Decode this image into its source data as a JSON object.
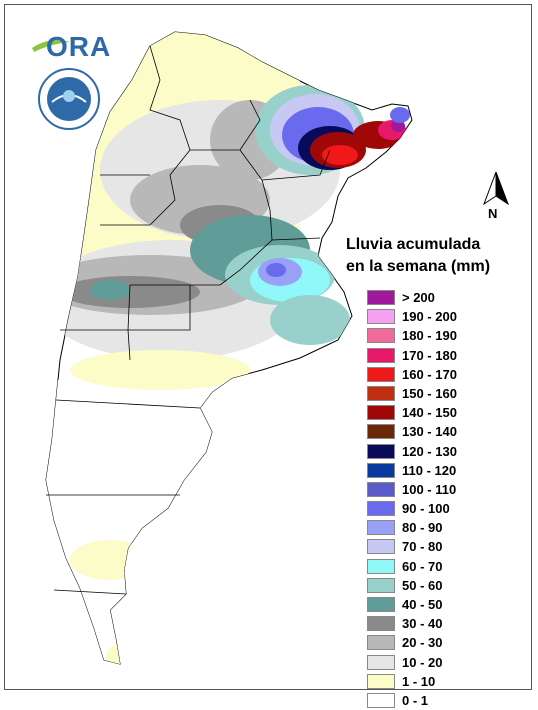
{
  "logo": {
    "text": "ORA",
    "accent_color": "#2e6aa8",
    "leaf_color": "#8cc63f"
  },
  "seal": {
    "icon": "national-weather-service-seal"
  },
  "north_arrow": {
    "letter": "N"
  },
  "legend": {
    "title_line1": "Lluvia acumulada",
    "title_line2": "en la semana (mm)",
    "items": [
      {
        "label": "> 200",
        "color": "#a0189c"
      },
      {
        "label": "190 - 200",
        "color": "#f5a0f0"
      },
      {
        "label": "180 - 190",
        "color": "#f06a9a"
      },
      {
        "label": "170 - 180",
        "color": "#e8186a"
      },
      {
        "label": "160 - 170",
        "color": "#f01818"
      },
      {
        "label": "150 - 160",
        "color": "#c03010"
      },
      {
        "label": "140 - 150",
        "color": "#a00808"
      },
      {
        "label": "130 - 140",
        "color": "#6a2808"
      },
      {
        "label": "120 - 130",
        "color": "#0a0a5a"
      },
      {
        "label": "110 - 120",
        "color": "#0a3aa0"
      },
      {
        "label": "100 - 110",
        "color": "#5a5ac8"
      },
      {
        "label": "90 - 100",
        "color": "#6a6aee"
      },
      {
        "label": "80 - 90",
        "color": "#9aa0f5"
      },
      {
        "label": "70 - 80",
        "color": "#c8c8f5"
      },
      {
        "label": "60 - 70",
        "color": "#90f8f8"
      },
      {
        "label": "50 - 60",
        "color": "#98d0cc"
      },
      {
        "label": "40 - 50",
        "color": "#609c98"
      },
      {
        "label": "30 - 40",
        "color": "#8a8a8a"
      },
      {
        "label": "20 - 30",
        "color": "#b8b8b8"
      },
      {
        "label": "10 - 20",
        "color": "#e6e6e6"
      },
      {
        "label": "1 - 10",
        "color": "#fcfcc8"
      },
      {
        "label": "0 - 1",
        "color": "#ffffff"
      }
    ]
  }
}
